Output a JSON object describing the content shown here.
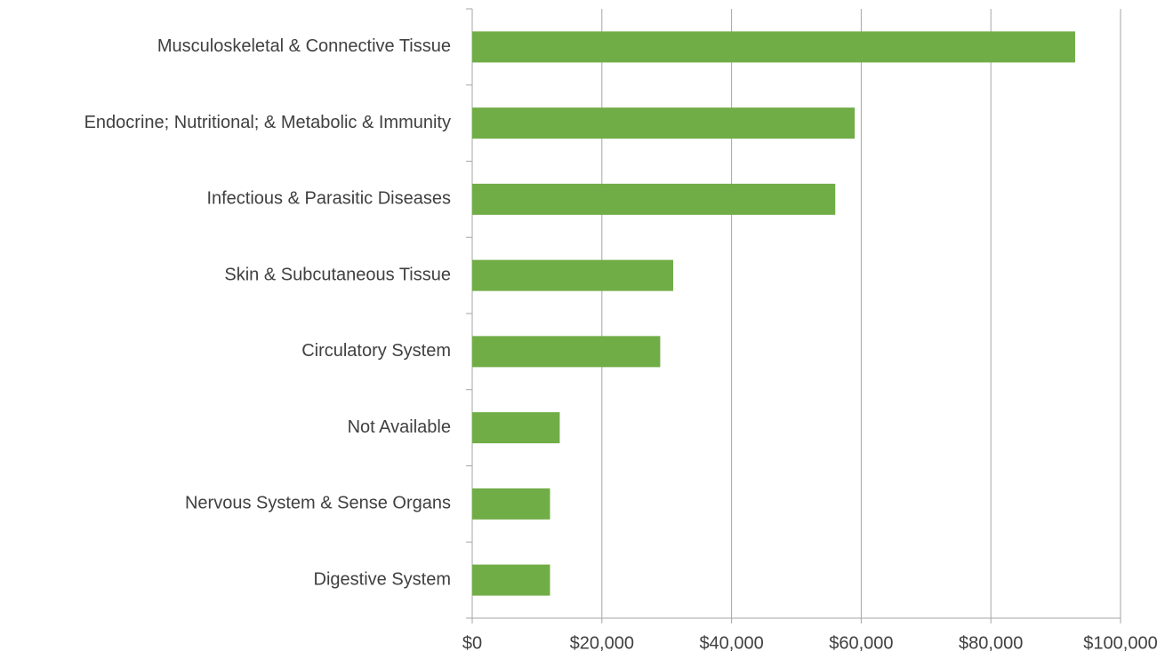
{
  "chart_data": {
    "type": "bar",
    "orientation": "horizontal",
    "categories": [
      "Musculoskeletal & Connective Tissue",
      "Endocrine; Nutritional; & Metabolic & Immunity",
      "Infectious & Parasitic Diseases",
      "Skin & Subcutaneous Tissue",
      "Circulatory System",
      "Not Available",
      "Nervous System & Sense Organs",
      "Digestive System"
    ],
    "values": [
      93000,
      59000,
      56000,
      31000,
      29000,
      13500,
      12000,
      12000
    ],
    "color": "#70ad47",
    "xlim": [
      0,
      100000
    ],
    "xticks": [
      {
        "value": 0,
        "label": "$0"
      },
      {
        "value": 20000,
        "label": "$20,000"
      },
      {
        "value": 40000,
        "label": "$40,000"
      },
      {
        "value": 60000,
        "label": "$60,000"
      },
      {
        "value": 80000,
        "label": "$80,000"
      },
      {
        "value": 100000,
        "label": "$100,000"
      }
    ],
    "grid": true
  }
}
